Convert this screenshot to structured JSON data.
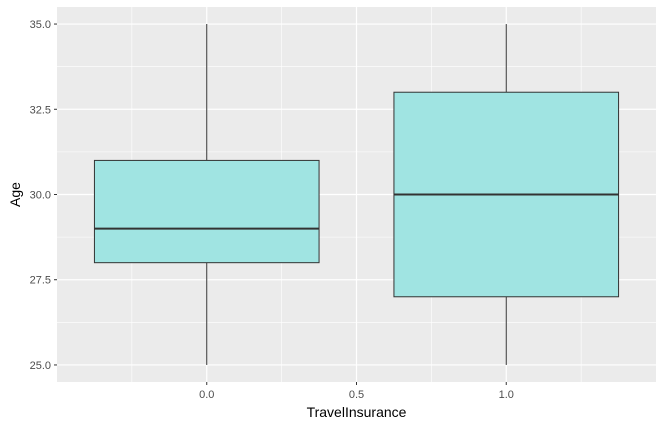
{
  "chart_data": {
    "type": "boxplot",
    "xlabel": "TravelInsurance",
    "ylabel": "Age",
    "xlim": [
      -0.5,
      1.5
    ],
    "ylim": [
      24.5,
      35.5
    ],
    "x_ticks": [
      "0.0",
      "0.5",
      "1.0"
    ],
    "x_tick_values": [
      0.0,
      0.5,
      1.0
    ],
    "y_ticks": [
      "25.0",
      "27.5",
      "30.0",
      "32.5",
      "35.0"
    ],
    "y_tick_values": [
      25.0,
      27.5,
      30.0,
      32.5,
      35.0
    ],
    "grid": true,
    "box_fill": "#a0e4e2",
    "panel_background": "#ebebeb",
    "boxes": [
      {
        "x": 0.0,
        "whisker_low": 25.0,
        "q1": 28.0,
        "median": 29.0,
        "q3": 31.0,
        "whisker_high": 35.0
      },
      {
        "x": 1.0,
        "whisker_low": 25.0,
        "q1": 27.0,
        "median": 30.0,
        "q3": 33.0,
        "whisker_high": 35.0
      }
    ]
  }
}
